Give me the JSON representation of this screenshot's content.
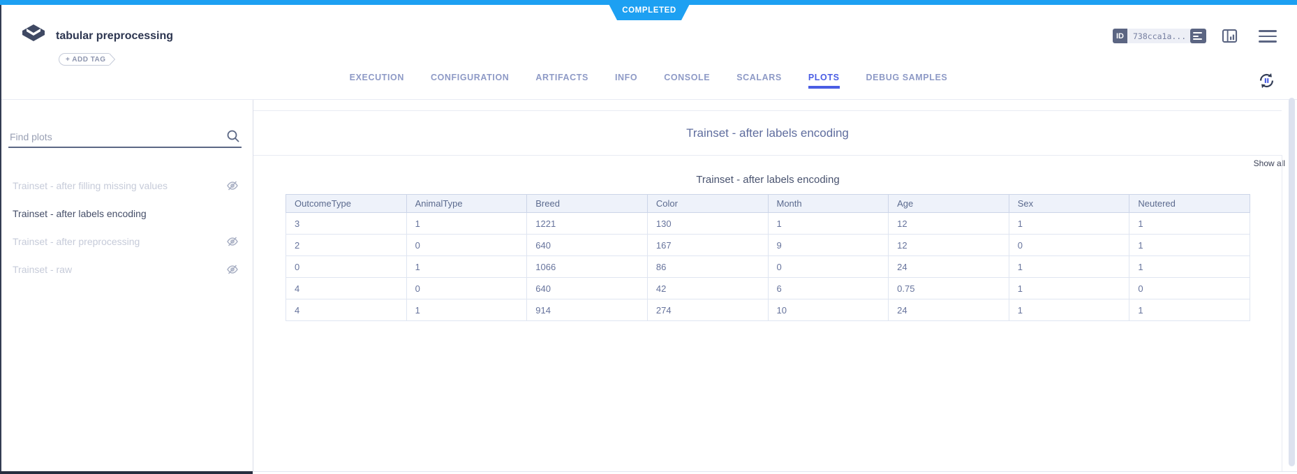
{
  "status": {
    "label": "COMPLETED"
  },
  "header": {
    "title": "tabular preprocessing",
    "add_tag_label": "+ ADD TAG",
    "id_badge": "ID",
    "id_value": "738cca1a..."
  },
  "tabs": {
    "items": [
      {
        "label": "EXECUTION",
        "active": false
      },
      {
        "label": "CONFIGURATION",
        "active": false
      },
      {
        "label": "ARTIFACTS",
        "active": false
      },
      {
        "label": "INFO",
        "active": false
      },
      {
        "label": "CONSOLE",
        "active": false
      },
      {
        "label": "SCALARS",
        "active": false
      },
      {
        "label": "PLOTS",
        "active": true
      },
      {
        "label": "DEBUG SAMPLES",
        "active": false
      }
    ]
  },
  "sidebar": {
    "search": {
      "placeholder": "Find plots"
    },
    "show_all_label": "Show all",
    "items": [
      {
        "label": "Trainset - after filling missing values",
        "selected": false,
        "hidden_icon": true
      },
      {
        "label": "Trainset - after labels encoding",
        "selected": true,
        "hidden_icon": false
      },
      {
        "label": "Trainset - after preprocessing",
        "selected": false,
        "hidden_icon": true
      },
      {
        "label": "Trainset - raw",
        "selected": false,
        "hidden_icon": true
      }
    ]
  },
  "main": {
    "panel_title": "Trainset - after labels encoding"
  },
  "chart_data": {
    "type": "table",
    "title": "Trainset - after labels encoding",
    "columns": [
      "OutcomeType",
      "AnimalType",
      "Breed",
      "Color",
      "Month",
      "Age",
      "Sex",
      "Neutered"
    ],
    "rows": [
      [
        "3",
        "1",
        "1221",
        "130",
        "1",
        "12",
        "1",
        "1"
      ],
      [
        "2",
        "0",
        "640",
        "167",
        "9",
        "12",
        "0",
        "1"
      ],
      [
        "0",
        "1",
        "1066",
        "86",
        "0",
        "24",
        "1",
        "1"
      ],
      [
        "4",
        "0",
        "640",
        "42",
        "6",
        "0.75",
        "1",
        "0"
      ],
      [
        "4",
        "1",
        "914",
        "274",
        "10",
        "24",
        "1",
        "1"
      ]
    ]
  },
  "colors": {
    "status_blue": "#1da0f2",
    "accent": "#4a5de4",
    "slate": "#5b6582",
    "dark_text": "#2c3550",
    "muted_item": "#c6cbd9",
    "selected_item": "#454e68",
    "panel_title": "#5f6d9e",
    "table_header_bg": "#eef2fa",
    "table_header_text": "#5b6a8e",
    "table_cell_text": "#66739c"
  }
}
